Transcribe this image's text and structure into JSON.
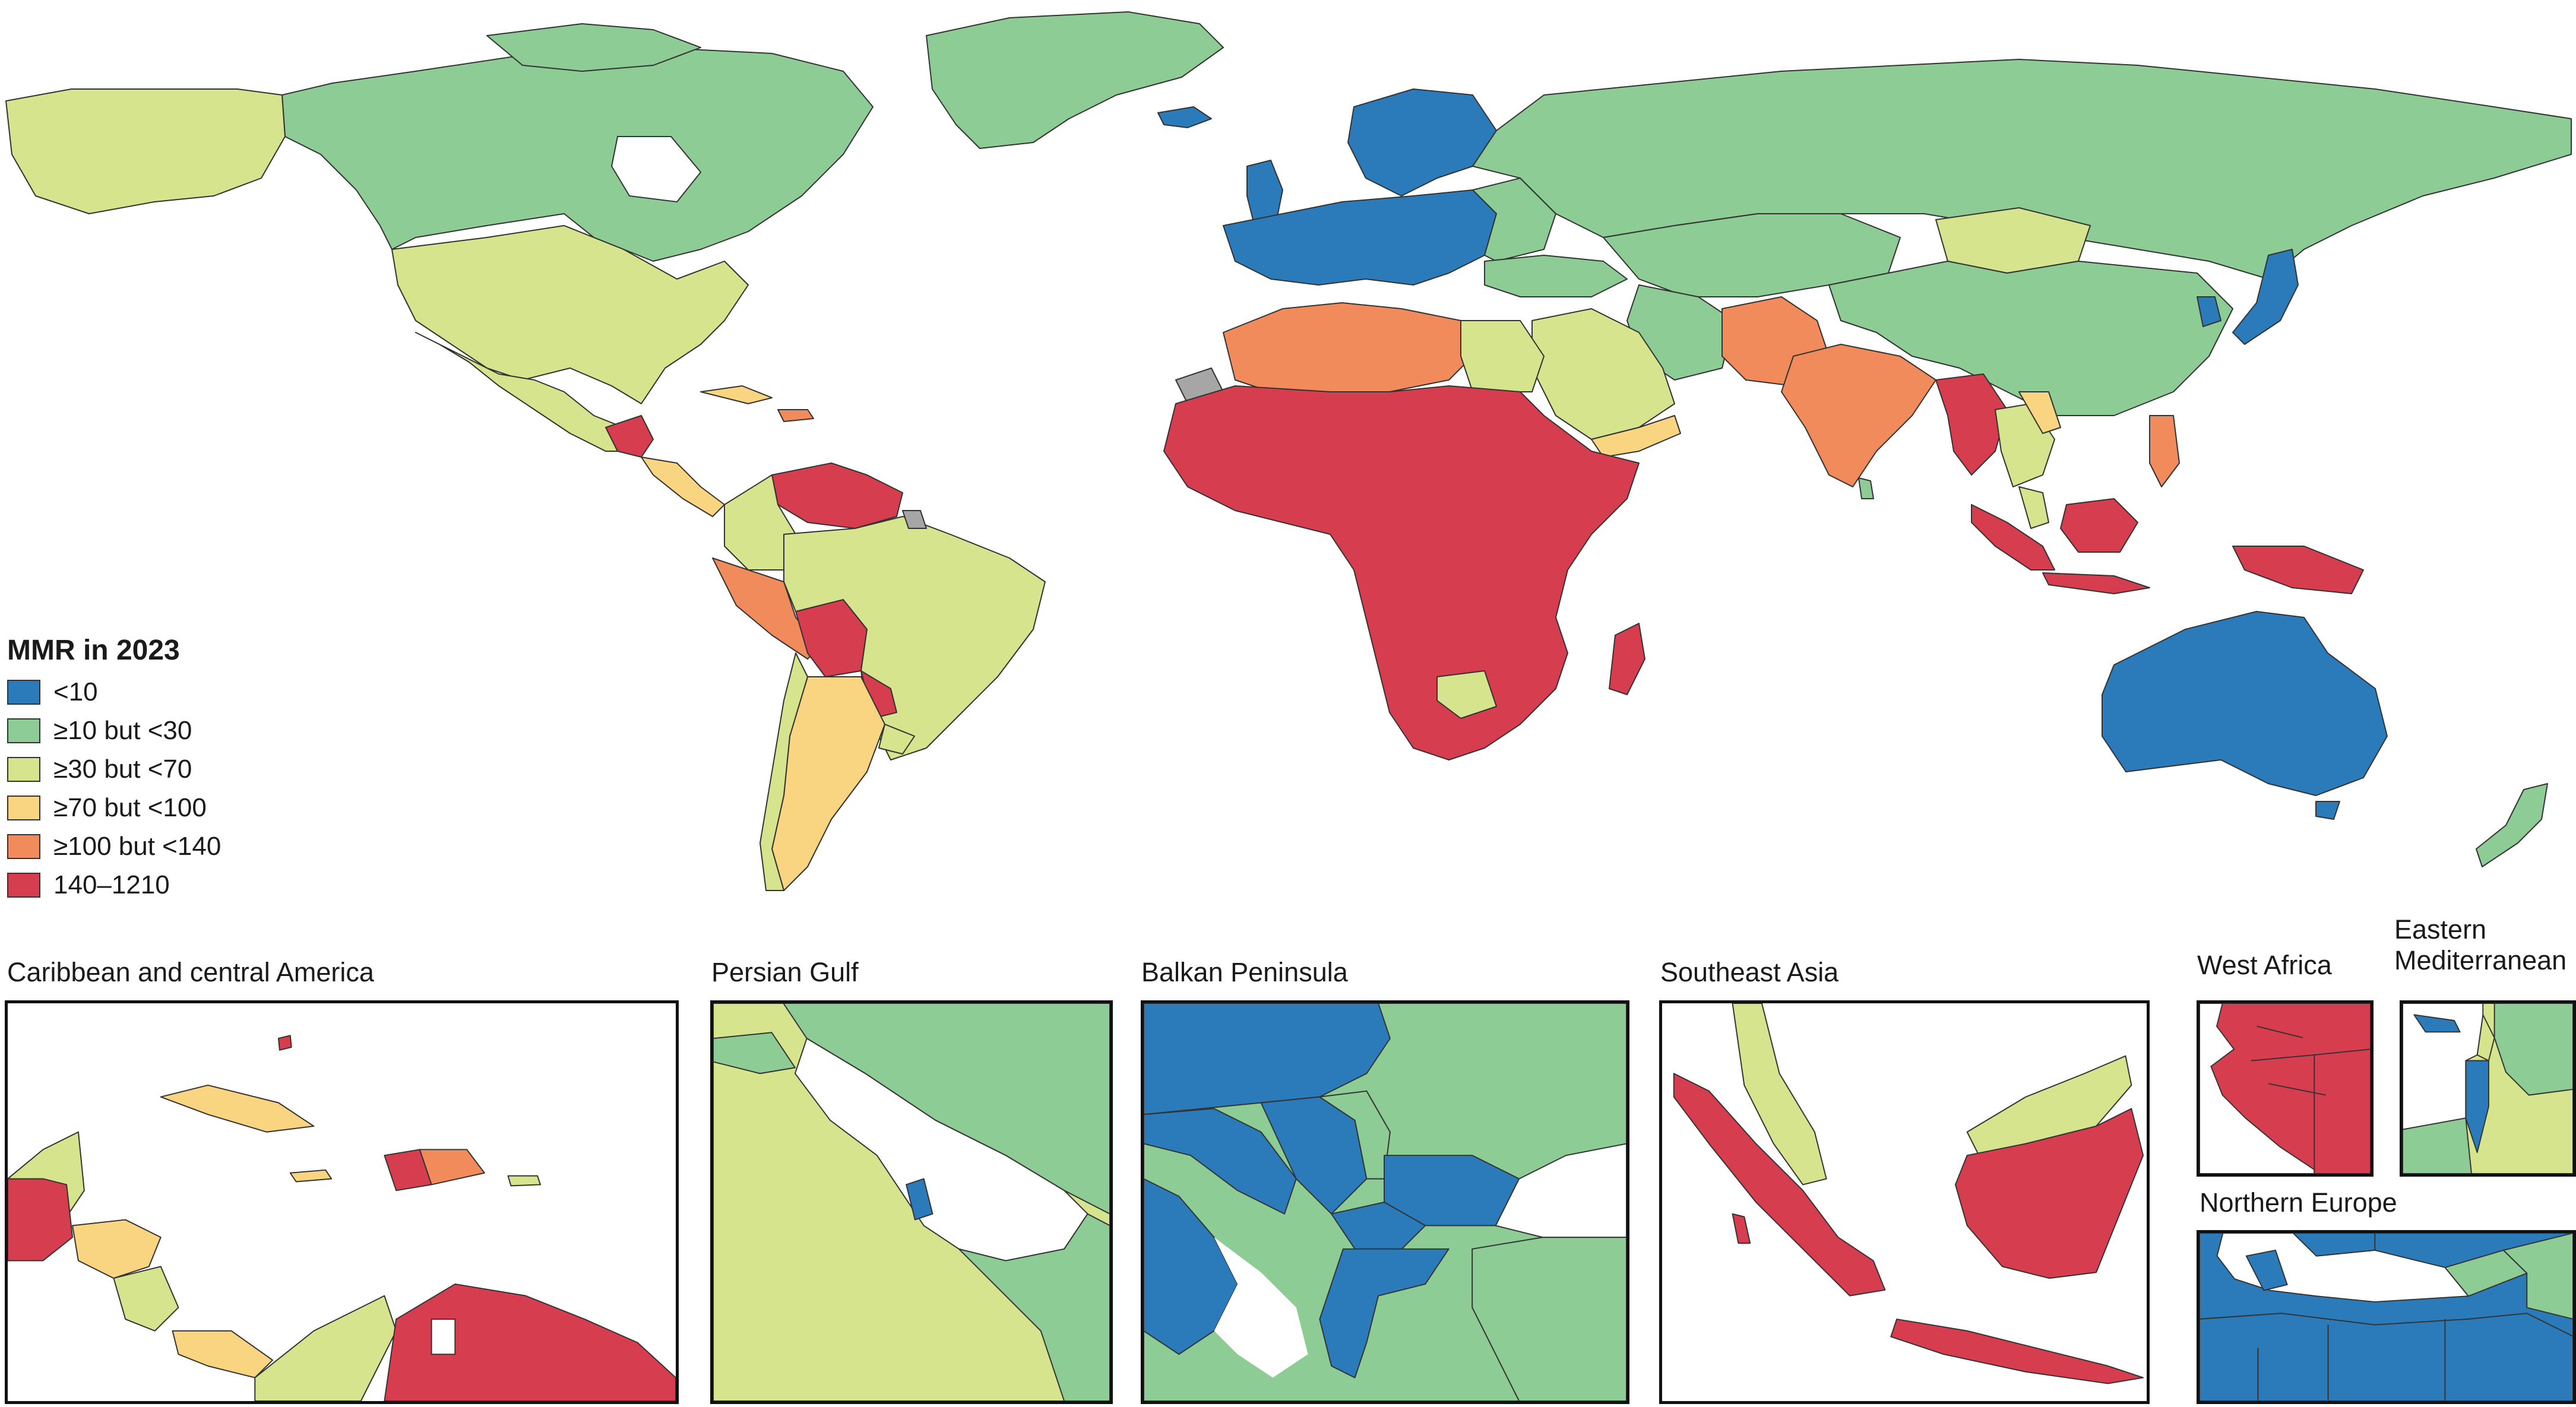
{
  "legend": {
    "title": "MMR in 2023",
    "items": [
      {
        "label": "<10",
        "color": "#2b7bba"
      },
      {
        "label": "≥10 but <30",
        "color": "#8dcd95"
      },
      {
        "label": "≥30 but <70",
        "color": "#d6e48d"
      },
      {
        "label": "≥70 but <100",
        "color": "#fad581"
      },
      {
        "label": "≥100 but <140",
        "color": "#f28b5b"
      },
      {
        "label": "140–1210",
        "color": "#d63d4f"
      }
    ],
    "no_data_color": "#a6a6a6"
  },
  "insets": [
    {
      "id": "caribbean",
      "title": "Caribbean and central America"
    },
    {
      "id": "persian-gulf",
      "title": "Persian Gulf"
    },
    {
      "id": "balkan",
      "title": "Balkan Peninsula"
    },
    {
      "id": "southeast-asia",
      "title": "Southeast Asia"
    },
    {
      "id": "west-africa",
      "title": "West Africa"
    },
    {
      "id": "eastern-med",
      "title": "Eastern Mediterranean"
    },
    {
      "id": "northern-europe",
      "title": "Northern Europe"
    }
  ]
}
